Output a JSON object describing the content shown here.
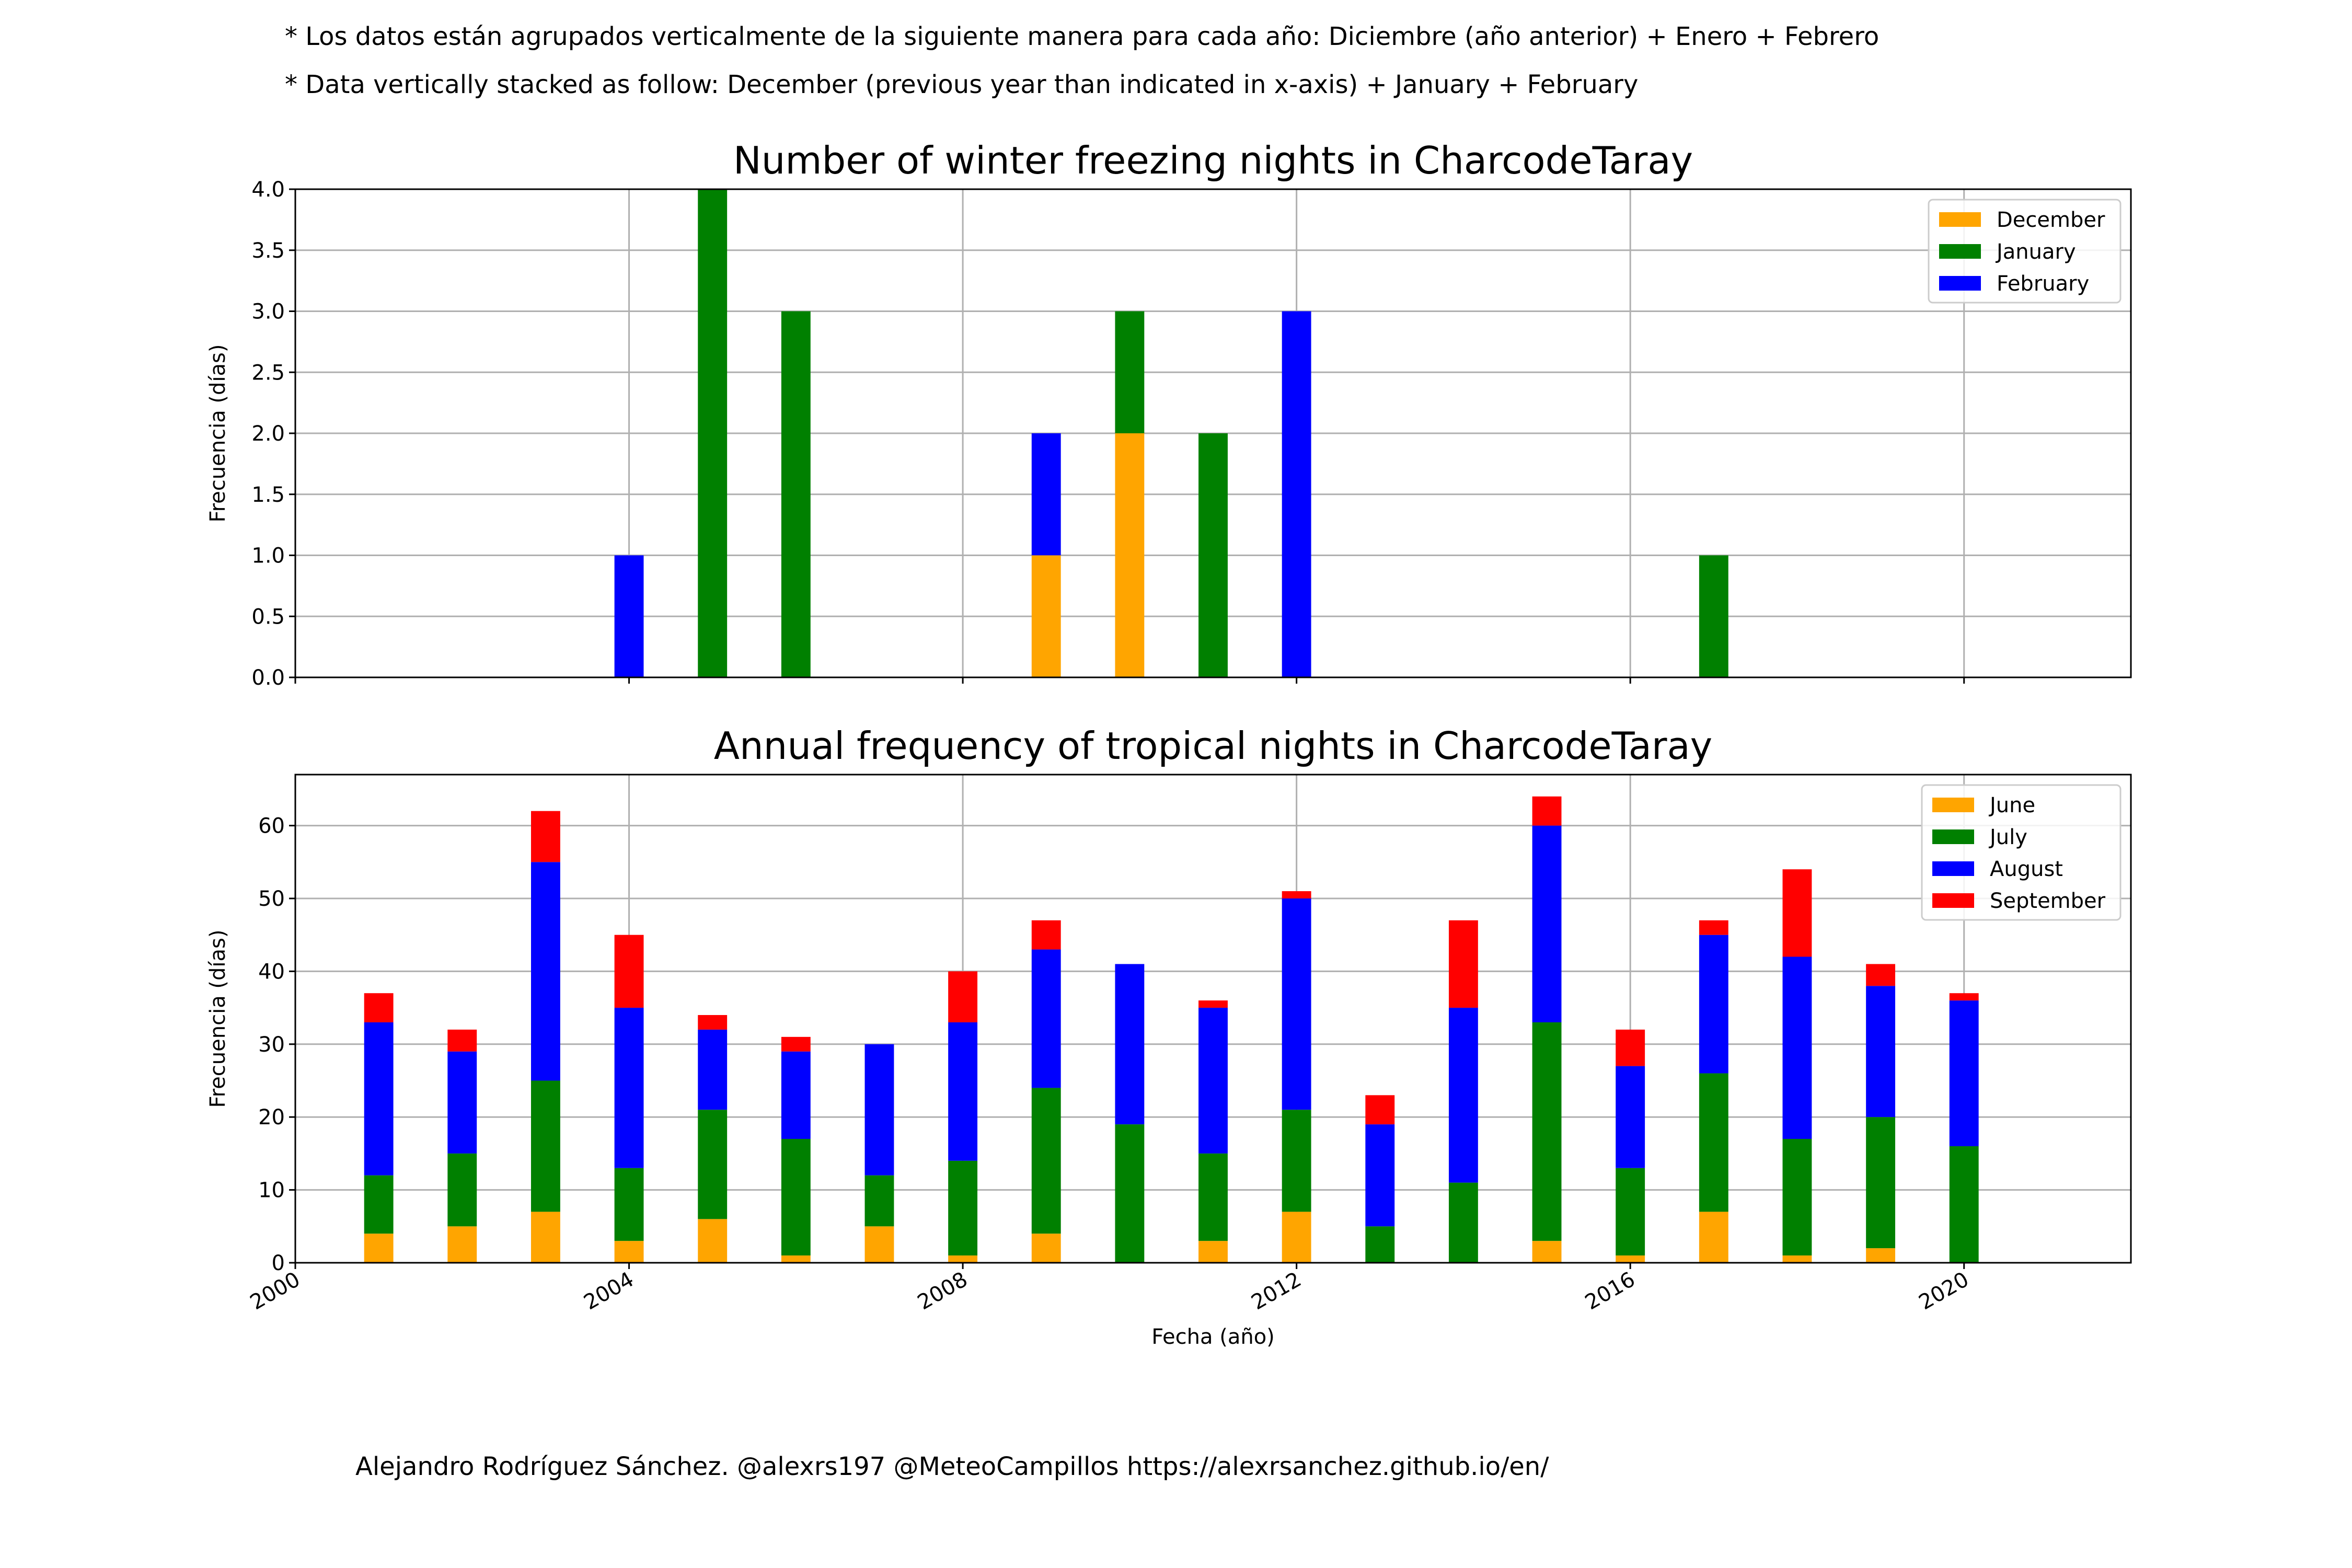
{
  "notes": {
    "line1": "* Los datos están agrupados verticalmente de la siguiente manera para cada año: Diciembre (año anterior) + Enero  + Febrero",
    "line2": "* Data vertically stacked as follow: December (previous year than indicated in x-axis) + January  + February"
  },
  "footer": "Alejandro Rodríguez Sánchez. @alexrs197 @MeteoCampillos   https://alexrsanchez.github.io/en/",
  "colors": {
    "orange": "#ffa500",
    "green": "#008000",
    "blue": "#0000ff",
    "red": "#ff0000"
  },
  "chart_data": [
    {
      "type": "bar",
      "stacked": true,
      "title": "Number of winter freezing nights in CharcodeTaray",
      "xlabel": "",
      "ylabel": "Frecuencia (días)",
      "xlim": [
        2000,
        2022
      ],
      "ylim": [
        0,
        4.0
      ],
      "x_ticks": [
        2000,
        2004,
        2008,
        2012,
        2016,
        2020
      ],
      "y_ticks": [
        0.0,
        0.5,
        1.0,
        1.5,
        2.0,
        2.5,
        3.0,
        3.5,
        4.0
      ],
      "y_tick_labels": [
        "0.0",
        "0.5",
        "1.0",
        "1.5",
        "2.0",
        "2.5",
        "3.0",
        "3.5",
        "4.0"
      ],
      "grid": true,
      "legend_position": "top-right",
      "x": [
        2001,
        2002,
        2003,
        2004,
        2005,
        2006,
        2007,
        2008,
        2009,
        2010,
        2011,
        2012,
        2013,
        2014,
        2015,
        2016,
        2017,
        2018,
        2019,
        2020,
        2021
      ],
      "series": [
        {
          "name": "December",
          "color": "#ffa500",
          "values": [
            0,
            0,
            0,
            0,
            0,
            0,
            0,
            0,
            1,
            2,
            0,
            0,
            0,
            0,
            0,
            0,
            0,
            0,
            0,
            0,
            0
          ]
        },
        {
          "name": "January",
          "color": "#008000",
          "values": [
            0,
            0,
            0,
            0,
            4,
            3,
            0,
            0,
            0,
            1,
            2,
            0,
            0,
            0,
            0,
            0,
            1,
            0,
            0,
            0,
            0
          ]
        },
        {
          "name": "February",
          "color": "#0000ff",
          "values": [
            0,
            0,
            0,
            1,
            0,
            0,
            0,
            0,
            1,
            0,
            0,
            3,
            0,
            0,
            0,
            0,
            0,
            0,
            0,
            0,
            0
          ]
        }
      ]
    },
    {
      "type": "bar",
      "stacked": true,
      "title": "Annual frequency of tropical nights in CharcodeTaray",
      "xlabel": "Fecha (año)",
      "ylabel": "Frecuencia (días)",
      "xlim": [
        2000,
        2022
      ],
      "ylim": [
        0,
        67
      ],
      "x_ticks": [
        2000,
        2004,
        2008,
        2012,
        2016,
        2020
      ],
      "y_ticks": [
        0,
        10,
        20,
        30,
        40,
        50,
        60
      ],
      "y_tick_labels": [
        "0",
        "10",
        "20",
        "30",
        "40",
        "50",
        "60"
      ],
      "grid": true,
      "legend_position": "top-right",
      "x": [
        2001,
        2002,
        2003,
        2004,
        2005,
        2006,
        2007,
        2008,
        2009,
        2010,
        2011,
        2012,
        2013,
        2014,
        2015,
        2016,
        2017,
        2018,
        2019,
        2020
      ],
      "series": [
        {
          "name": "June",
          "color": "#ffa500",
          "values": [
            4,
            5,
            7,
            3,
            6,
            1,
            5,
            1,
            4,
            0,
            3,
            7,
            0,
            0,
            3,
            1,
            7,
            1,
            2,
            0
          ]
        },
        {
          "name": "July",
          "color": "#008000",
          "values": [
            8,
            10,
            18,
            10,
            15,
            16,
            7,
            13,
            20,
            19,
            12,
            14,
            5,
            11,
            30,
            12,
            19,
            16,
            18,
            16
          ]
        },
        {
          "name": "August",
          "color": "#0000ff",
          "values": [
            21,
            14,
            30,
            22,
            11,
            12,
            18,
            19,
            19,
            22,
            20,
            29,
            14,
            24,
            27,
            14,
            19,
            25,
            18,
            20
          ]
        },
        {
          "name": "September",
          "color": "#ff0000",
          "values": [
            4,
            3,
            7,
            10,
            2,
            2,
            0,
            7,
            4,
            0,
            1,
            1,
            4,
            12,
            4,
            5,
            2,
            12,
            3,
            1
          ]
        }
      ]
    }
  ]
}
